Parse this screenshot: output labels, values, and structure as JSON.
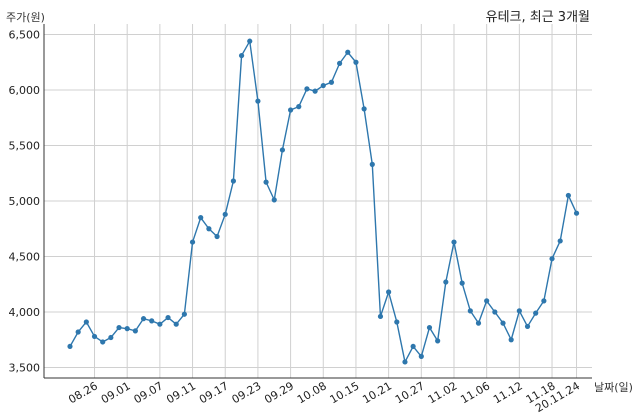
{
  "chart_data": {
    "type": "line",
    "title": "유테크, 최근 3개월",
    "xlabel": "날짜(일)",
    "ylabel": "주가(원)",
    "ylim": [
      3500,
      6600
    ],
    "yticks": [
      3500,
      4000,
      4500,
      5000,
      5500,
      6000,
      6500
    ],
    "ytick_labels": [
      "3,500",
      "4,000",
      "4,500",
      "5,000",
      "5,500",
      "6,000",
      "6,500"
    ],
    "xtick_labels": [
      "08.26",
      "09.01",
      "09.07",
      "09.11",
      "09.17",
      "09.23",
      "09.29",
      "10.08",
      "10.15",
      "10.21",
      "10.27",
      "11.02",
      "11.06",
      "11.12",
      "11.18",
      "20.11.24"
    ],
    "xtick_index": [
      3,
      7,
      11,
      15,
      19,
      23,
      27,
      31,
      35,
      39,
      43,
      47,
      51,
      55,
      59,
      62
    ],
    "grid": true,
    "line_color": "#2e77ad",
    "series": [
      {
        "values": [
          3690,
          3820,
          3910,
          3780,
          3730,
          3770,
          3860,
          3850,
          3830,
          3940,
          3920,
          3890,
          3950,
          3890,
          3980,
          4630,
          4850,
          4750,
          4680,
          4880,
          5180,
          6310,
          6440,
          5900,
          5170,
          5010,
          5460,
          5820,
          5850,
          6010,
          5990,
          6040,
          6070,
          6240,
          6340,
          6250,
          5830,
          5330,
          3960,
          4180,
          3910,
          3550,
          3690,
          3600,
          3860,
          3740,
          4270,
          4630,
          4260,
          4010,
          3900,
          4100,
          4000,
          3900,
          3750,
          4010,
          3870,
          3990,
          4100,
          4480,
          4640,
          5050,
          4890
        ]
      }
    ]
  }
}
